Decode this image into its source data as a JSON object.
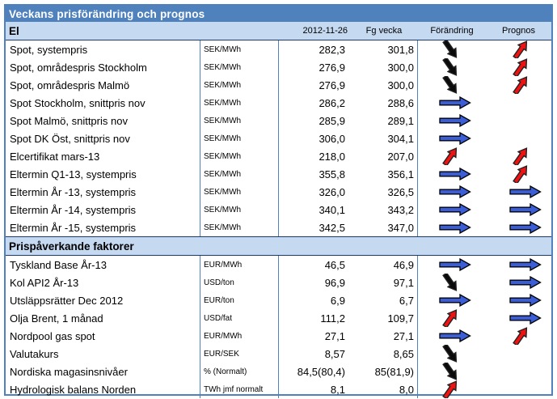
{
  "title": "Veckans prisförändring och prognos",
  "columns": {
    "date": "2012-11-26",
    "prev": "Fg vecka",
    "change": "Förändring",
    "forecast": "Prognos"
  },
  "colors": {
    "title_bar_blue": "#4F81BD",
    "section_header_blue": "#C5D9F1",
    "border_blue": "#4F81BD",
    "section_line_navy": "#1F3864",
    "arrow_blue": "#3B5ED7",
    "arrow_red": "#EE1212",
    "arrow_black": "#0B0B0B"
  },
  "arrow_legend": {
    "right-blue": "unchanged / sideways",
    "up-red": "up",
    "down-black": "down"
  },
  "sections": [
    {
      "label": "El",
      "rows": [
        {
          "name": "Spot, systempris",
          "unit": "SEK/MWh",
          "value": "282,3",
          "prev": "301,8",
          "change": "down-black",
          "forecast": "up-red"
        },
        {
          "name": "Spot, områdespris Stockholm",
          "unit": "SEK/MWh",
          "value": "276,9",
          "prev": "300,0",
          "change": "down-black",
          "forecast": "up-red"
        },
        {
          "name": "Spot, områdespris Malmö",
          "unit": "SEK/MWh",
          "value": "276,9",
          "prev": "300,0",
          "change": "down-black",
          "forecast": "up-red"
        },
        {
          "name": "Spot Stockholm, snittpris nov",
          "unit": "SEK/MWh",
          "value": "286,2",
          "prev": "288,6",
          "change": "right-blue",
          "forecast": "none"
        },
        {
          "name": "Spot Malmö, snittpris nov",
          "unit": "SEK/MWh",
          "value": "285,9",
          "prev": "289,1",
          "change": "right-blue",
          "forecast": "none"
        },
        {
          "name": "Spot DK Öst, snittpris nov",
          "unit": "SEK/MWh",
          "value": "306,0",
          "prev": "304,1",
          "change": "right-blue",
          "forecast": "none"
        },
        {
          "name": "Elcertifikat mars-13",
          "unit": "SEK/MWh",
          "value": "218,0",
          "prev": "207,0",
          "change": "up-red",
          "forecast": "up-red"
        },
        {
          "name": "Eltermin Q1-13, systempris",
          "unit": "SEK/MWh",
          "value": "355,8",
          "prev": "356,1",
          "change": "right-blue",
          "forecast": "up-red"
        },
        {
          "name": "Eltermin År -13, systempris",
          "unit": "SEK/MWh",
          "value": "326,0",
          "prev": "326,5",
          "change": "right-blue",
          "forecast": "right-blue"
        },
        {
          "name": "Eltermin År -14, systempris",
          "unit": "SEK/MWh",
          "value": "340,1",
          "prev": "343,2",
          "change": "right-blue",
          "forecast": "right-blue"
        },
        {
          "name": "Eltermin År -15, systempris",
          "unit": "SEK/MWh",
          "value": "342,5",
          "prev": "347,0",
          "change": "right-blue",
          "forecast": "right-blue"
        }
      ]
    },
    {
      "label": "Prispåverkande faktorer",
      "rows": [
        {
          "name": "Tyskland Base År-13",
          "unit": "EUR/MWh",
          "value": "46,5",
          "prev": "46,9",
          "change": "right-blue",
          "forecast": "right-blue"
        },
        {
          "name": "Kol API2 År-13",
          "unit": "USD/ton",
          "value": "96,9",
          "prev": "97,1",
          "change": "down-black",
          "forecast": "right-blue"
        },
        {
          "name": "Utsläppsrätter Dec 2012",
          "unit": "EUR/ton",
          "value": "6,9",
          "prev": "6,7",
          "change": "right-blue",
          "forecast": "right-blue"
        },
        {
          "name": "Olja Brent, 1 månad",
          "unit": "USD/fat",
          "value": "111,2",
          "prev": "109,7",
          "change": "up-red",
          "forecast": "right-blue"
        },
        {
          "name": "Nordpool gas spot",
          "unit": "EUR/MWh",
          "value": "27,1",
          "prev": "27,1",
          "change": "right-blue",
          "forecast": "up-red"
        },
        {
          "name": "Valutakurs",
          "unit": "EUR/SEK",
          "value": "8,57",
          "prev": "8,65",
          "change": "down-black",
          "forecast": "none"
        },
        {
          "name": "Nordiska magasinsnivåer",
          "unit": "% (Normalt)",
          "value": "84,5(80,4)",
          "prev": "85(81,9)",
          "change": "down-black",
          "forecast": "none"
        },
        {
          "name": "Hydrologisk balans Norden",
          "unit": "TWh jmf normalt",
          "value": "8,1",
          "prev": "8,0",
          "change": "up-red",
          "forecast": "none"
        }
      ]
    }
  ]
}
